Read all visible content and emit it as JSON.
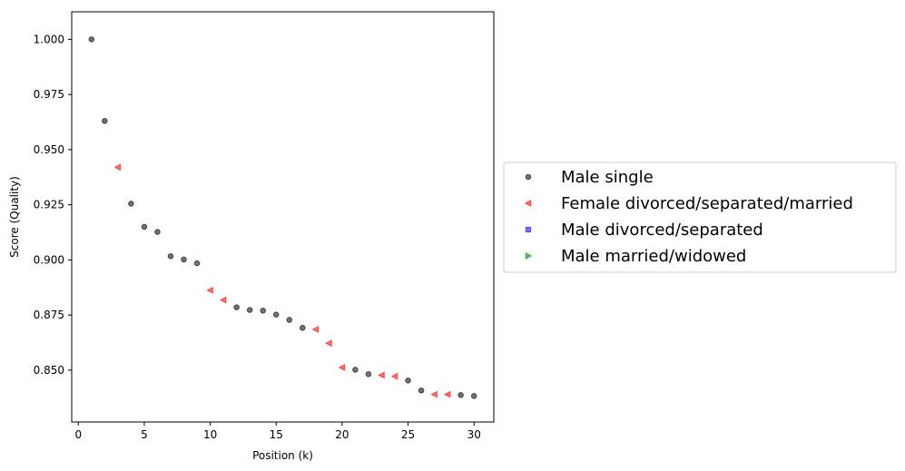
{
  "chart_data": {
    "type": "scatter",
    "xlabel": "Position (k)",
    "ylabel": "Score (Quality)",
    "xlim": [
      -0.5,
      31.5
    ],
    "ylim": [
      0.8265,
      1.0125
    ],
    "x_ticks": [
      0,
      5,
      10,
      15,
      20,
      25,
      30
    ],
    "x_tick_labels": [
      "0",
      "5",
      "10",
      "15",
      "20",
      "25",
      "30"
    ],
    "y_ticks": [
      0.85,
      0.875,
      0.9,
      0.925,
      0.95,
      0.975,
      1.0
    ],
    "y_tick_labels": [
      "0.850",
      "0.875",
      "0.900",
      "0.925",
      "0.950",
      "0.975",
      "1.000"
    ],
    "grid": false,
    "legend_position": "right-outside",
    "series": [
      {
        "name": "Male single",
        "marker": "circle",
        "color": "#000000",
        "points": [
          [
            1,
            1.0
          ],
          [
            2,
            0.963
          ],
          [
            4,
            0.9255
          ],
          [
            5,
            0.915
          ],
          [
            6,
            0.9127
          ],
          [
            7,
            0.9017
          ],
          [
            8,
            0.9002
          ],
          [
            9,
            0.8985
          ],
          [
            12,
            0.8785
          ],
          [
            13,
            0.8773
          ],
          [
            14,
            0.877
          ],
          [
            15,
            0.8752
          ],
          [
            16,
            0.8728
          ],
          [
            17,
            0.8692
          ],
          [
            21,
            0.8502
          ],
          [
            22,
            0.8482
          ],
          [
            25,
            0.8453
          ],
          [
            26,
            0.8408
          ],
          [
            29,
            0.8387
          ],
          [
            30,
            0.8383
          ]
        ]
      },
      {
        "name": "Female divorced/separated/married",
        "marker": "triangle-left",
        "color": "#ff0000",
        "points": [
          [
            3,
            0.942
          ],
          [
            10,
            0.8862
          ],
          [
            11,
            0.8818
          ],
          [
            18,
            0.8685
          ],
          [
            19,
            0.8622
          ],
          [
            20,
            0.8512
          ],
          [
            23,
            0.8477
          ],
          [
            24,
            0.8472
          ],
          [
            27,
            0.839
          ],
          [
            28,
            0.839
          ]
        ]
      },
      {
        "name": "Male divorced/separated",
        "marker": "square",
        "color": "#0000ff",
        "points": []
      },
      {
        "name": "Male married/widowed",
        "marker": "triangle-right",
        "color": "#008000",
        "points": []
      }
    ]
  }
}
